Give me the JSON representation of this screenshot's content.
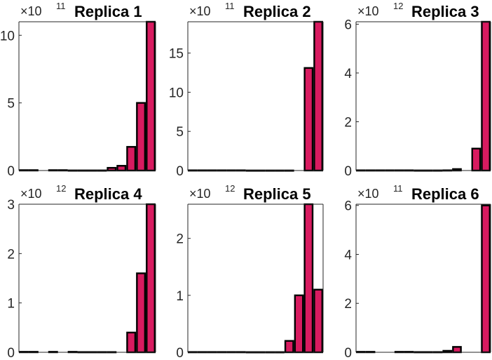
{
  "colors": {
    "bar_fill": "#D81B60",
    "bar_edge": "#000000",
    "axis": "#262626"
  },
  "chart_data": [
    {
      "type": "bar",
      "title": "Replica 1",
      "multiplier": "×10",
      "exponent": "11",
      "ylim": [
        0,
        11
      ],
      "yticks": [
        0,
        5,
        10
      ],
      "ytick_labels": [
        "0",
        "5",
        "10"
      ],
      "values": [
        0.03,
        0.03,
        0,
        0.03,
        0.03,
        0.01,
        0.01,
        0.01,
        0.01,
        0.2,
        0.35,
        1.75,
        5.0,
        11.0
      ]
    },
    {
      "type": "bar",
      "title": "Replica 2",
      "multiplier": "×10",
      "exponent": "11",
      "ylim": [
        0,
        19
      ],
      "yticks": [
        0,
        5,
        10,
        15
      ],
      "ytick_labels": [
        "0",
        "5",
        "10",
        "15"
      ],
      "values": [
        0.03,
        0.03,
        0.03,
        0.03,
        0.03,
        0.03,
        0.01,
        0.01,
        0.01,
        0.01,
        0.01,
        0,
        13.1,
        19.0
      ]
    },
    {
      "type": "bar",
      "title": "Replica 3",
      "multiplier": "×10",
      "exponent": "12",
      "ylim": [
        0,
        6.1
      ],
      "yticks": [
        0,
        2,
        4,
        6
      ],
      "ytick_labels": [
        "0",
        "2",
        "4",
        "6"
      ],
      "values": [
        0.01,
        0.01,
        0.01,
        0.01,
        0.01,
        0.01,
        0.005,
        0.005,
        0.005,
        0.01,
        0.06,
        0,
        0.9,
        6.1
      ]
    },
    {
      "type": "bar",
      "title": "Replica 4",
      "multiplier": "×10",
      "exponent": "12",
      "ylim": [
        0,
        3
      ],
      "yticks": [
        0,
        1,
        2,
        3
      ],
      "ytick_labels": [
        "0",
        "1",
        "2",
        "3"
      ],
      "values": [
        0.01,
        0.01,
        0,
        0.01,
        0,
        0.01,
        0.005,
        0.005,
        0.005,
        0.005,
        0,
        0.4,
        1.6,
        3.0
      ]
    },
    {
      "type": "bar",
      "title": "Replica 5",
      "multiplier": "×10",
      "exponent": "12",
      "ylim": [
        0,
        2.6
      ],
      "yticks": [
        0,
        1,
        2
      ],
      "ytick_labels": [
        "0",
        "1",
        "2"
      ],
      "values": [
        0.005,
        0.005,
        0.005,
        0.005,
        0.005,
        0.005,
        0.003,
        0.003,
        0.003,
        0.003,
        0.2,
        1.0,
        2.6,
        1.1
      ]
    },
    {
      "type": "bar",
      "title": "Replica 6",
      "multiplier": "×10",
      "exponent": "11",
      "ylim": [
        0,
        6.05
      ],
      "yticks": [
        0,
        2,
        4,
        6
      ],
      "ytick_labels": [
        "0",
        "2",
        "4",
        "6"
      ],
      "values": [
        0.02,
        0.02,
        0,
        0,
        0.02,
        0.02,
        0.01,
        0.01,
        0.01,
        0.06,
        0.22,
        0,
        0,
        6.0
      ]
    }
  ]
}
